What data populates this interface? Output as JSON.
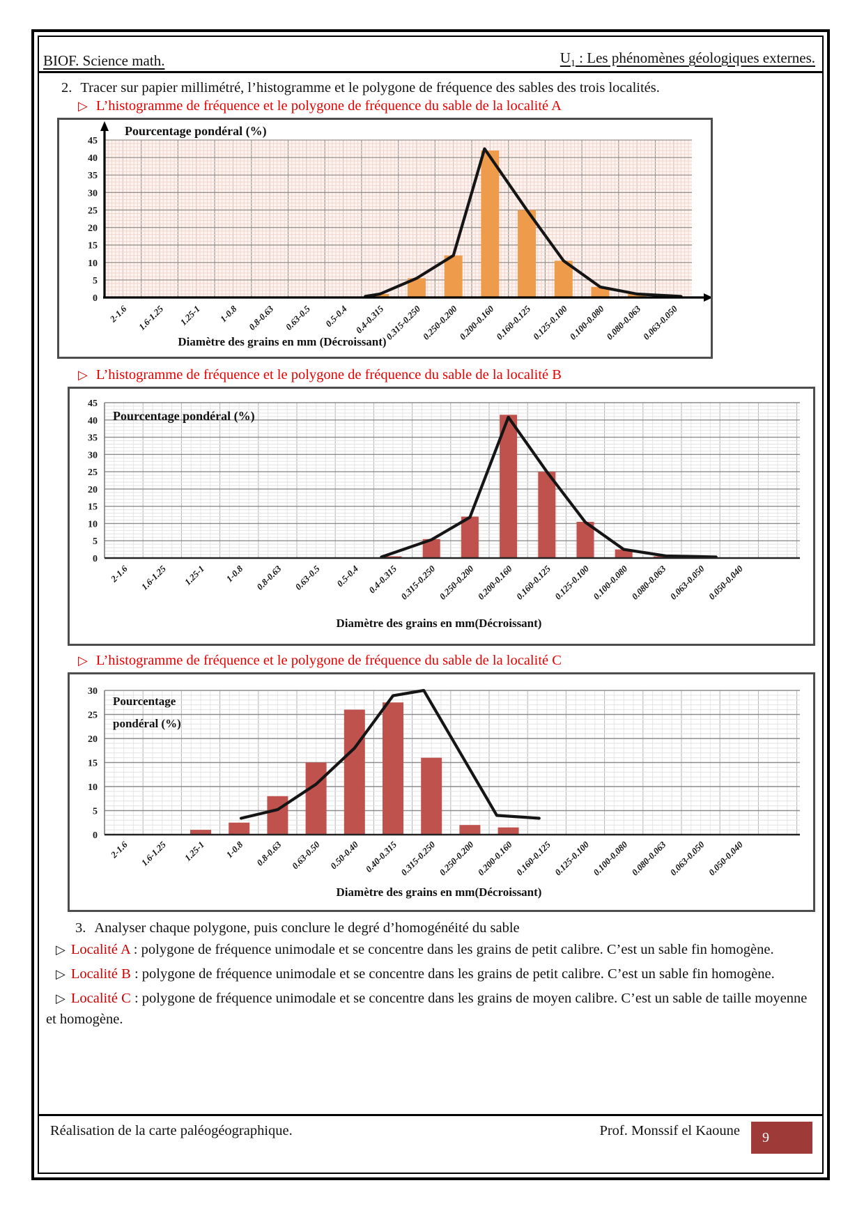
{
  "ui": {
    "bullet": "▷"
  },
  "header": {
    "left": "BIOF. Science math.",
    "right_u": "U",
    "right_sub": "1",
    "right_rest": " : Les phénomènes géologiques externes."
  },
  "intro": {
    "number": "2.",
    "text": "Tracer sur papier millimétré, l’histogramme et le polygone de fréquence des sables des trois localités."
  },
  "analysis": {
    "number": "3.",
    "title": "Analyser chaque polygone, puis conclure le degré d’homogénéité du sable",
    "items": [
      {
        "label": "Localité A",
        "text": " : polygone de fréquence unimodale et se concentre dans les grains de petit calibre. C’est un sable fin homogène."
      },
      {
        "label": "Localité B",
        "text": " : polygone de fréquence unimodale et se concentre dans les grains de petit calibre. C’est un sable fin homogène."
      },
      {
        "label": "Localité C",
        "text": " : polygone de fréquence unimodale et se concentre dans les grains de moyen calibre. C’est un sable de taille moyenne et homogène."
      }
    ]
  },
  "footer": {
    "left": "Réalisation de la carte paléogéographique.",
    "right": "Prof. Monssif el Kaoune",
    "page": "9"
  },
  "chart_data": [
    {
      "type": "bar",
      "overlay": "frequency-polygon",
      "heading": "L’histogramme de fréquence et le polygone de fréquence du sable de la localité A",
      "title": "Pourcentage pondéral (%)",
      "xlabel": "Diamètre des grains en mm (Décroissant)",
      "ylim": [
        0,
        45
      ],
      "ystep": 5,
      "grid": "millimeter-pink",
      "legend": "none",
      "bar_color": "#ef9b4c",
      "line_color": "#151515",
      "categories": [
        "2-1.6",
        "1.6-1.25",
        "1.25-1",
        "1-0.8",
        "0.8-0.63",
        "0.63-0.5",
        "0.5-0.4",
        "0.4-0.315",
        "0.315-0.250",
        "0.250-0.200",
        "0.200-0.160",
        "0.160-0.125",
        "0.125-0.100",
        "0.100-0.080",
        "0.080-0.063",
        "0.063-0.050"
      ],
      "values": [
        0,
        0,
        0,
        0,
        0,
        0,
        0,
        1,
        5.5,
        12,
        42,
        25,
        10.5,
        3,
        1,
        0.5
      ],
      "polygon_points": [
        [
          7.1,
          0.3
        ],
        [
          7.5,
          1
        ],
        [
          8.5,
          5.5
        ],
        [
          9.5,
          12
        ],
        [
          10.35,
          42.5
        ],
        [
          11.5,
          25
        ],
        [
          12.5,
          10.5
        ],
        [
          13.5,
          3
        ],
        [
          14.5,
          1
        ],
        [
          15.7,
          0.3
        ]
      ]
    },
    {
      "type": "bar",
      "overlay": "frequency-polygon",
      "heading": "L’histogramme de fréquence et le polygone de fréquence du sable de la localité B",
      "title": "Pourcentage  pondéral (%)",
      "xlabel": "Diamètre des grains en mm(Décroissant)",
      "ylim": [
        0,
        45
      ],
      "ystep": 5,
      "grid": "gray",
      "legend": "none",
      "bar_color": "#c0524e",
      "line_color": "#151515",
      "categories": [
        "2-1.6",
        "1.6-1.25",
        "1.25-1",
        "1-0.8",
        "0.8-0.63",
        "0.63-0.5",
        "0.5-0.4",
        "0.4-0.315",
        "0.315-0.250",
        "0.250-0.200",
        "0.200-0.160",
        "0.160-0.125",
        "0.125-0.100",
        "0.100-0.080",
        "0.080-0.063",
        "0.063-0.050",
        "0.050-0.040"
      ],
      "values": [
        0,
        0,
        0,
        0,
        0,
        0,
        0,
        0.5,
        5.5,
        12,
        41.5,
        25,
        10.5,
        2.5,
        0.5,
        0.5,
        0
      ],
      "polygon_points": [
        [
          7.2,
          0.3
        ],
        [
          8.5,
          5.3
        ],
        [
          9.5,
          11.8
        ],
        [
          10.5,
          40.8
        ],
        [
          11.5,
          25
        ],
        [
          12.5,
          10.4
        ],
        [
          13.5,
          2.5
        ],
        [
          14.6,
          0.6
        ],
        [
          15.9,
          0.3
        ]
      ]
    },
    {
      "type": "bar",
      "overlay": "frequency-polygon",
      "heading": "L’histogramme de fréquence et le polygone de fréquence du sable de la localité C",
      "title_lines": [
        "Pourcentage",
        "pondéral (%)"
      ],
      "xlabel": "Diamètre des grains en mm(Décroissant)",
      "ylim": [
        0,
        30
      ],
      "ystep": 5,
      "grid": "gray",
      "legend": "none",
      "bar_color": "#c0524e",
      "line_color": "#151515",
      "categories": [
        "2-1.6",
        "1.6-1.25",
        "1.25-1",
        "1-0.8",
        "0.8-0.63",
        "0.63-0.50",
        "0.50-0.40",
        "0.40-0.315",
        "0.315-0.250",
        "0.250-0.200",
        "0.200-0.160",
        "0.160-0.125",
        "0.125-0.100",
        "0.100-0.080",
        "0.080-0.063",
        "0.063-0.050",
        "0.050-0.040"
      ],
      "values": [
        0,
        0,
        1,
        2.5,
        8,
        15,
        26,
        27.5,
        16,
        2,
        1.5,
        0,
        0,
        0,
        0,
        0,
        0
      ],
      "polygon_points": [
        [
          3.55,
          3.4
        ],
        [
          4.5,
          5.2
        ],
        [
          5.5,
          10.5
        ],
        [
          6.5,
          18
        ],
        [
          7.5,
          28.9
        ],
        [
          8.3,
          30
        ],
        [
          10.2,
          4
        ],
        [
          11.3,
          3.4
        ]
      ]
    }
  ]
}
